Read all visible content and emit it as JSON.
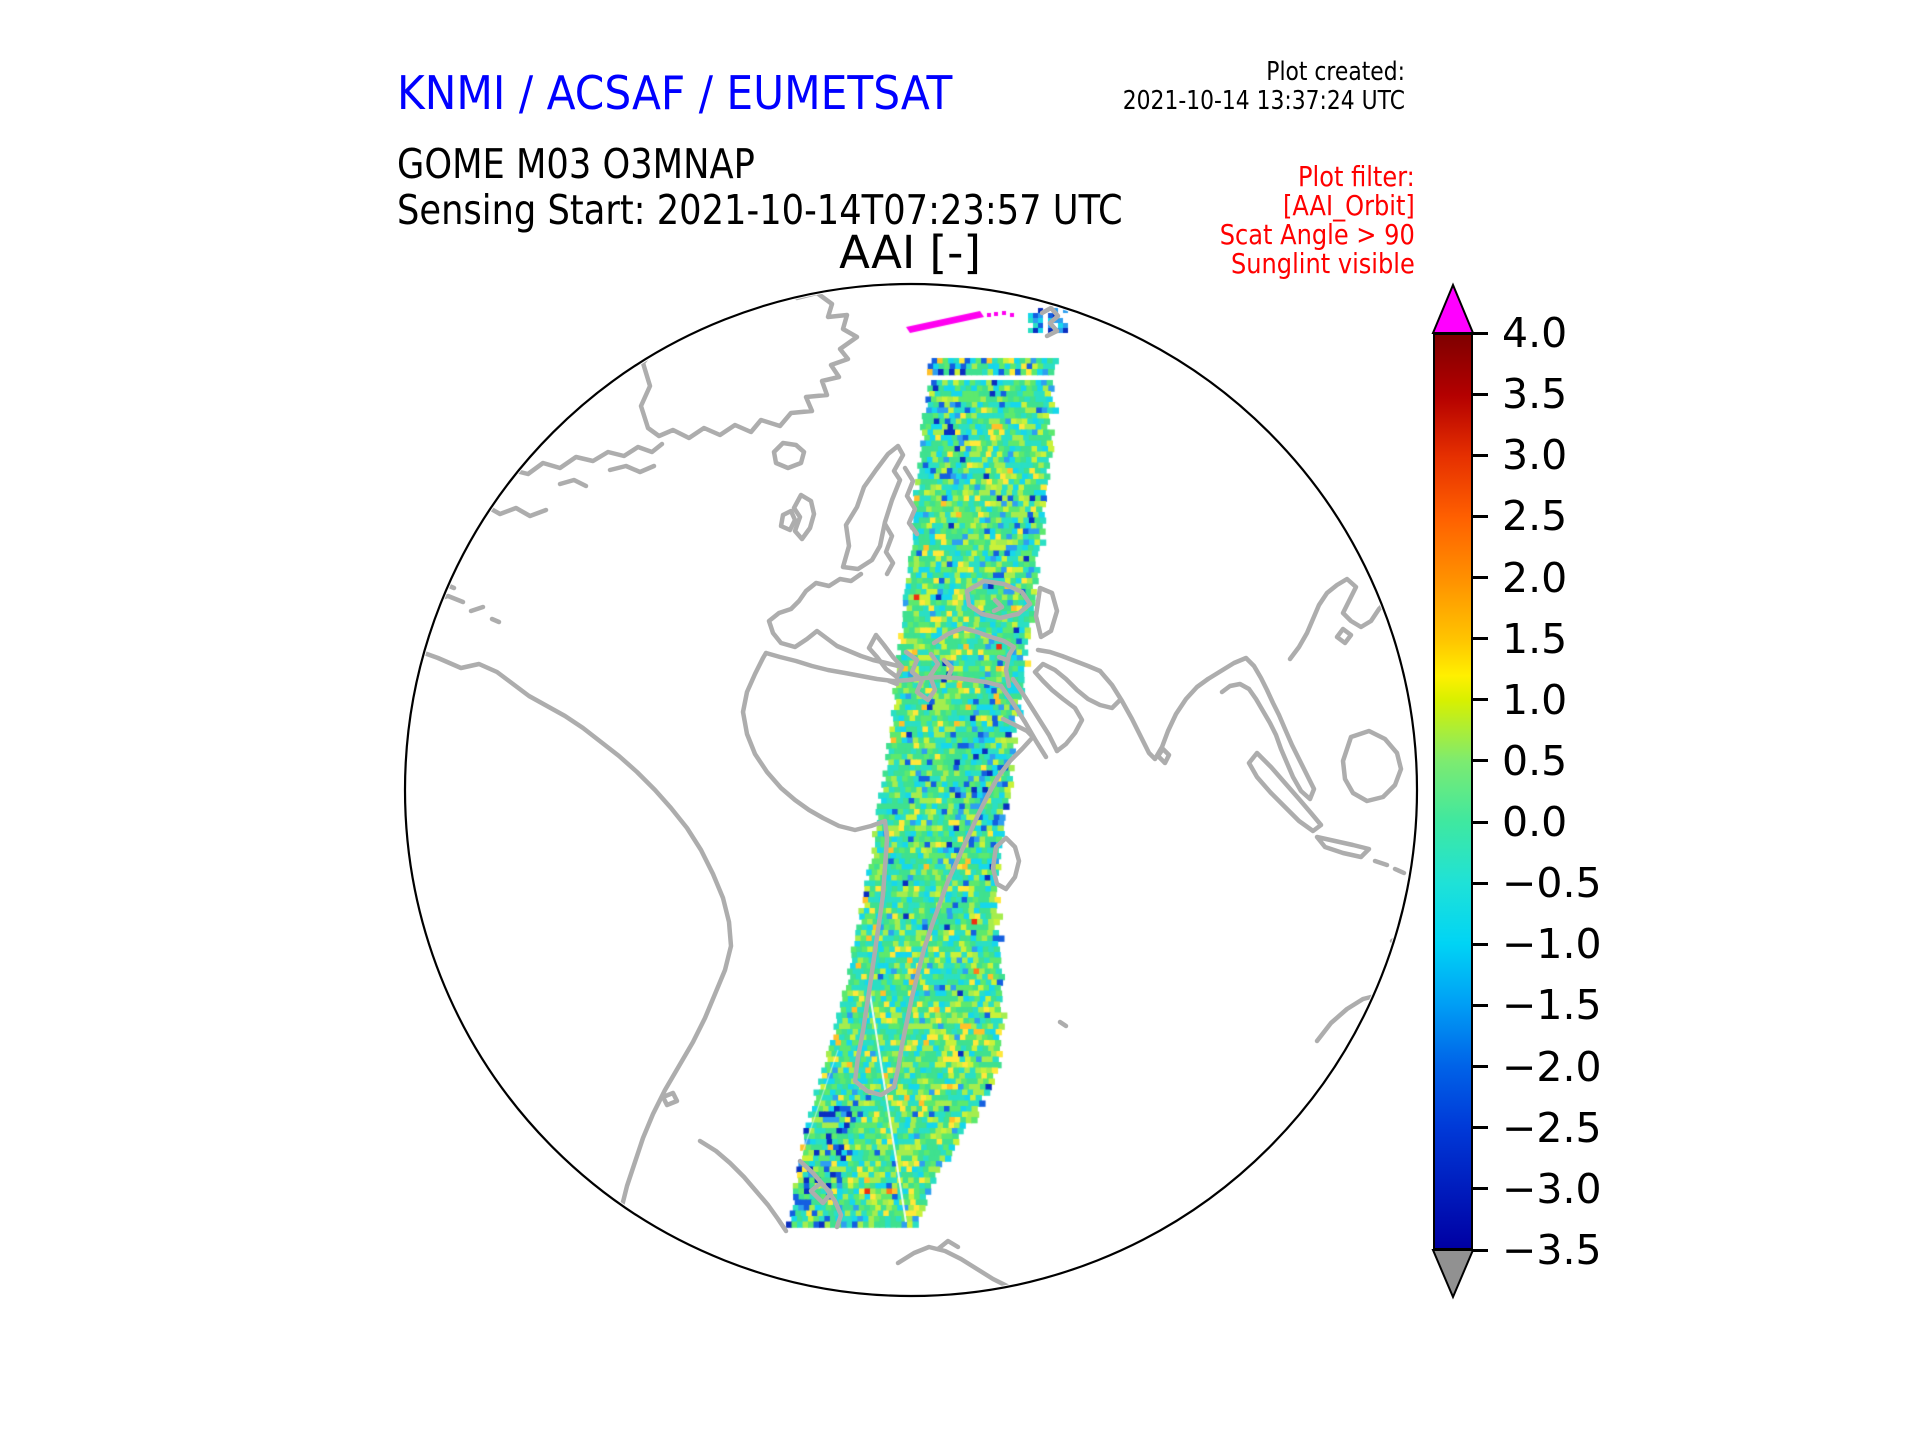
{
  "header": {
    "institution_title": "KNMI / ACSAF / EUMETSAT",
    "plot_created": {
      "label": "Plot created:",
      "timestamp": "2021-10-14 13:37:24 UTC"
    },
    "product_title": "GOME M03 O3MNAP",
    "sensing_start": "Sensing Start: 2021-10-14T07:23:57 UTC",
    "plot_filter": {
      "lines": [
        "Plot filter:",
        "[AAI_Orbit]",
        "Scat Angle > 90",
        "Sunglint visible"
      ],
      "color": "#ff0000"
    }
  },
  "map": {
    "title": "AAI [-]",
    "coastline_color": "#adadad",
    "globe_outline_color": "#000000"
  },
  "colorbar": {
    "unit": "AAI [-]",
    "tick_labels": [
      "4.0",
      "3.5",
      "3.0",
      "2.5",
      "2.0",
      "1.5",
      "1.0",
      "0.5",
      "0.0",
      "−0.5",
      "−1.0",
      "−1.5",
      "−2.0",
      "−2.5",
      "−3.0",
      "−3.5"
    ],
    "range_top": 4.0,
    "range_bottom": -3.5,
    "over_arrow_color": "#ff00ff",
    "under_arrow_color": "#919191",
    "stops": [
      {
        "v": 4.0,
        "c": "#7f0000"
      },
      {
        "v": 3.5,
        "c": "#b40000"
      },
      {
        "v": 3.0,
        "c": "#e63000"
      },
      {
        "v": 2.5,
        "c": "#ff6000"
      },
      {
        "v": 2.0,
        "c": "#ff9000"
      },
      {
        "v": 1.5,
        "c": "#ffc400"
      },
      {
        "v": 1.2,
        "c": "#fff000"
      },
      {
        "v": 1.0,
        "c": "#d8f000"
      },
      {
        "v": 0.5,
        "c": "#7deb70"
      },
      {
        "v": 0.0,
        "c": "#3fe8a0"
      },
      {
        "v": -0.5,
        "c": "#1fe2d7"
      },
      {
        "v": -1.0,
        "c": "#00d4f5"
      },
      {
        "v": -1.5,
        "c": "#009ef5"
      },
      {
        "v": -2.0,
        "c": "#0063e8"
      },
      {
        "v": -2.5,
        "c": "#003ad8"
      },
      {
        "v": -3.0,
        "c": "#001dbe"
      },
      {
        "v": -3.5,
        "c": "#0000a3"
      }
    ]
  },
  "swath": {
    "sunglint_streak_color": "#ff00f0",
    "palette": {
      "green": "#3fe18f",
      "spring": "#5ce96e",
      "teal": "#2adfc4",
      "ygreen": "#a5ed4e",
      "lime": "#c9f23a",
      "cyan": "#16d7ec",
      "yellow": "#ffe93a",
      "gold": "#ffc02a",
      "lblue": "#2e9ff0",
      "blue": "#145fe0",
      "dblue": "#0a2ec0",
      "orange": "#ff7a1a",
      "red": "#ef2e10"
    }
  }
}
